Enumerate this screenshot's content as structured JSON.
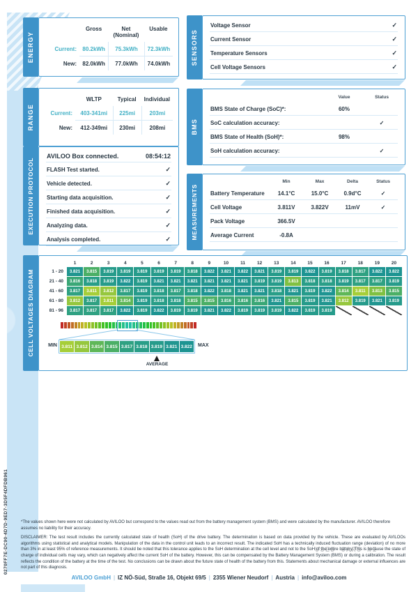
{
  "page": {
    "uuid": "0270FF7E-DC90-4D7D-9ED7-3D5F4DFDB961",
    "watermark": "USED CARS NI",
    "check_glyph": "✓"
  },
  "energy": {
    "tab": "ENERGY",
    "columns": [
      "Gross",
      "Net (Nominal)",
      "Usable"
    ],
    "rows": [
      {
        "label": "Current:",
        "values": [
          "80.2kWh",
          "75.3kWh",
          "72.3kWh"
        ]
      },
      {
        "label": "New:",
        "values": [
          "82.0kWh",
          "77.0kWh",
          "74.0kWh"
        ]
      }
    ]
  },
  "range": {
    "tab": "RANGE",
    "columns": [
      "WLTP",
      "Typical",
      "Individual"
    ],
    "rows": [
      {
        "label": "Current:",
        "values": [
          "403-341mi",
          "225mi",
          "203mi"
        ]
      },
      {
        "label": "New:",
        "values": [
          "412-349mi",
          "230mi",
          "208mi"
        ]
      }
    ]
  },
  "protocol": {
    "tab": "EXECUTION PROTOCOL",
    "rows": [
      {
        "label": "AVILOO Box connected.",
        "right": "08:54:12",
        "is_time": true
      },
      {
        "label": "FLASH Test started.",
        "right": "✓"
      },
      {
        "label": "Vehicle detected.",
        "right": "✓"
      },
      {
        "label": "Starting data acquisition.",
        "right": "✓"
      },
      {
        "label": "Finished data acquisition.",
        "right": "✓"
      },
      {
        "label": "Analyzing data.",
        "right": "✓"
      },
      {
        "label": "Analysis completed.",
        "right": "✓"
      }
    ]
  },
  "sensors": {
    "tab": "SENSORS",
    "rows": [
      {
        "label": "Voltage Sensor",
        "check": "✓"
      },
      {
        "label": "Current Sensor",
        "check": "✓"
      },
      {
        "label": "Temperature Sensors",
        "check": "✓"
      },
      {
        "label": "Cell Voltage Sensors",
        "check": "✓"
      }
    ]
  },
  "bms": {
    "tab": "BMS",
    "columns": [
      "Value",
      "Status"
    ],
    "rows": [
      {
        "label": "BMS State of Charge (SoC)*:",
        "value": "60%",
        "check": ""
      },
      {
        "label": "SoC calculation accuracy:",
        "value": "",
        "check": "✓"
      },
      {
        "label": "BMS State of Health (SoH)*:",
        "value": "98%",
        "check": ""
      },
      {
        "label": "SoH calculation accuracy:",
        "value": "",
        "check": "✓"
      }
    ]
  },
  "measurements": {
    "tab": "MEASUREMENTS",
    "columns": [
      "Min",
      "Max",
      "Delta",
      "Status"
    ],
    "rows": [
      {
        "label": "Battery Temperature",
        "min": "14.1°C",
        "max": "15.0°C",
        "delta": "0.9d°C",
        "check": "✓"
      },
      {
        "label": "Cell Voltage",
        "min": "3.811V",
        "max": "3.822V",
        "delta": "11mV",
        "check": "✓"
      },
      {
        "label": "Pack Voltage",
        "min": "366.5V",
        "max": "",
        "delta": "",
        "check": ""
      },
      {
        "label": "Average Current",
        "min": "-0.8A",
        "max": "",
        "delta": "",
        "check": ""
      }
    ]
  },
  "cell_voltages": {
    "tab": "CELL VOLTAGES DIAGRAM",
    "col_headers": [
      1,
      2,
      3,
      4,
      5,
      6,
      7,
      8,
      9,
      10,
      11,
      12,
      13,
      14,
      15,
      16,
      17,
      18,
      19,
      20
    ],
    "row_labels": [
      "1 - 20",
      "21 - 40",
      "41 - 60",
      "61 - 80",
      "81 - 96"
    ],
    "grid": [
      [
        3.821,
        3.815,
        3.819,
        3.819,
        3.819,
        3.819,
        3.819,
        3.818,
        3.822,
        3.821,
        3.822,
        3.821,
        3.819,
        3.819,
        3.822,
        3.819,
        3.818,
        3.817,
        3.822,
        3.822
      ],
      [
        3.816,
        3.818,
        3.819,
        3.822,
        3.819,
        3.821,
        3.821,
        3.821,
        3.821,
        3.821,
        3.821,
        3.819,
        3.819,
        3.813,
        3.818,
        3.818,
        3.819,
        3.817,
        3.817,
        3.819
      ],
      [
        3.817,
        3.811,
        3.812,
        3.817,
        3.819,
        3.818,
        3.817,
        3.818,
        3.822,
        3.818,
        3.821,
        3.821,
        3.818,
        3.821,
        3.819,
        3.822,
        3.814,
        3.811,
        3.813,
        3.815
      ],
      [
        3.812,
        3.817,
        3.811,
        3.814,
        3.819,
        3.818,
        3.818,
        3.815,
        3.815,
        3.816,
        3.816,
        3.816,
        3.821,
        3.815,
        3.819,
        3.821,
        3.812,
        3.819,
        3.821,
        3.819
      ],
      [
        3.817,
        3.817,
        3.817,
        3.822,
        3.819,
        3.822,
        3.819,
        3.819,
        3.821,
        3.822,
        3.819,
        3.819,
        3.819,
        3.822,
        3.819,
        3.819,
        null,
        null,
        null,
        null
      ]
    ],
    "value_range": [
      3.811,
      3.822
    ],
    "scale": {
      "min_label": "MIN",
      "max_label": "MAX",
      "values": [
        3.811,
        3.812,
        3.814,
        3.815,
        3.817,
        3.818,
        3.819,
        3.821,
        3.822
      ],
      "average_label": "AVERAGE",
      "average_index": 6
    }
  },
  "footnote": "*The values shown here were not calculated by AVILOO but correspond to the values read out from the battery management system (BMS) and were calculated by the manufacturer. AVILOO therefore assumes no liability for their accuracy.",
  "disclaimer": "DISCLAIMER: The test result includes the currently calculated state of health (SoH) of the drive battery. The determination is based on data provided by the vehicle. These are evaluated by AVILOOs algorithms using statistical and analytical models. Manipulation of the data in the control unit leads to an incorrect result. The indicated SoH has a technically induced fluctuation range (deviation) of no more than 3% in at least 95% of reference measurements. It should be noted that this tolerance applies to the SoH determination at the cell level and not to the SoH of the entire battery. This is because the state of charge of individual cells may vary, which can negatively affect the current SoH of the battery. However, this can be compensated by the Battery Management System (BMS) or during a calibration. The result reflects the condition of the battery at the time of the test. No conclusions can be drawn about the future state of health of the battery from this. Statements about mechanical damage or external influences are not part of this diagnosis.",
  "footer": {
    "segments": [
      "AVILOO GmbH",
      "IZ NÖ-Süd, Straße 16, Objekt 69/5",
      "2355 Wiener Neudorf",
      "Austria",
      "info@aviloo.com"
    ],
    "separator": "|"
  },
  "colors": {
    "tab_blue": "#3e93c9",
    "border_blue": "#4c9fd3",
    "teal_text": "#41b0c5",
    "dark_text": "#273642",
    "band_blue": "#c9e4f6"
  }
}
